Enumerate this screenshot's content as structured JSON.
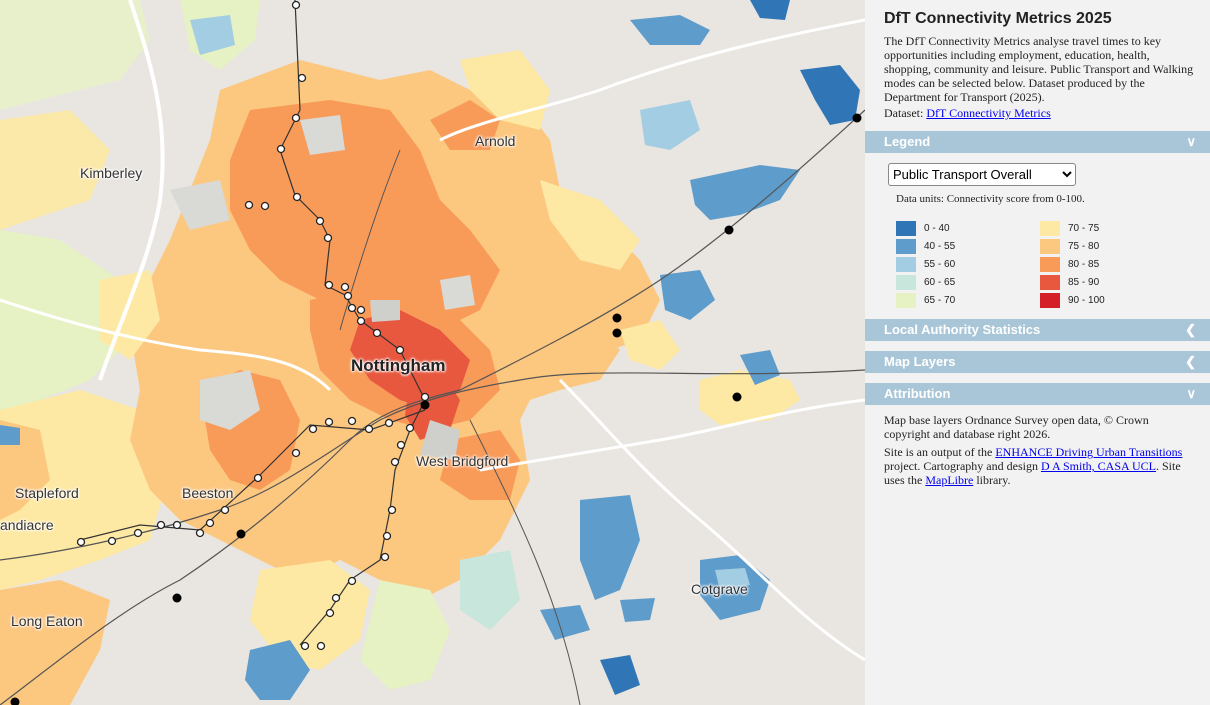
{
  "map": {
    "places": [
      {
        "name": "Arnold",
        "cls": ""
      },
      {
        "name": "Kimberley",
        "cls": ""
      },
      {
        "name": "Nottingham",
        "cls": "big"
      },
      {
        "name": "West Bridgford",
        "cls": ""
      },
      {
        "name": "Stapleford",
        "cls": ""
      },
      {
        "name": "Beeston",
        "cls": ""
      },
      {
        "name": "andiacre",
        "cls": ""
      },
      {
        "name": "Long Eaton",
        "cls": ""
      },
      {
        "name": "Cotgrave",
        "cls": ""
      }
    ]
  },
  "panel": {
    "title": "DfT Connectivity Metrics 2025",
    "intro": "The DfT Connectivity Metrics analyse travel times to key opportunities including employment, education, health, shopping, community and leisure. Public Transport and Walking modes can be selected below. Dataset produced by the Department for Transport (2025).",
    "dataset_label": "Dataset:",
    "dataset_link": "DfT Connectivity Metrics",
    "sections": {
      "legend": "Legend",
      "local_authority": "Local Authority Statistics",
      "map_layers": "Map Layers",
      "attribution": "Attribution"
    },
    "mode_select": {
      "selected": "Public Transport Overall",
      "options": [
        "Public Transport Overall"
      ]
    },
    "units": "Data units: Connectivity score from 0-100.",
    "legend_items": [
      {
        "label": "0 - 40",
        "color": "#3076b7"
      },
      {
        "label": "40 - 55",
        "color": "#5e9ccb"
      },
      {
        "label": "55 - 60",
        "color": "#a3cde3"
      },
      {
        "label": "60 - 65",
        "color": "#c8e6dc"
      },
      {
        "label": "65 - 70",
        "color": "#e6f2c4"
      },
      {
        "label": "70 - 75",
        "color": "#fde9a3"
      },
      {
        "label": "75 - 80",
        "color": "#fcc77f"
      },
      {
        "label": "80 - 85",
        "color": "#f89b59"
      },
      {
        "label": "85 - 90",
        "color": "#e8583f"
      },
      {
        "label": "90 - 100",
        "color": "#d41e28"
      }
    ],
    "attribution": {
      "p1": "Map base layers Ordnance Survey open data, © Crown copyright and database right 2026.",
      "p2_a": "Site is an output of the",
      "p2_link1": "ENHANCE Driving Urban Transitions",
      "p2_b": "project. Cartography and design",
      "p2_link2": "D A Smith, CASA UCL",
      "p2_c": ". Site uses the",
      "p2_link3": "MapLibre",
      "p2_d": "library."
    }
  }
}
